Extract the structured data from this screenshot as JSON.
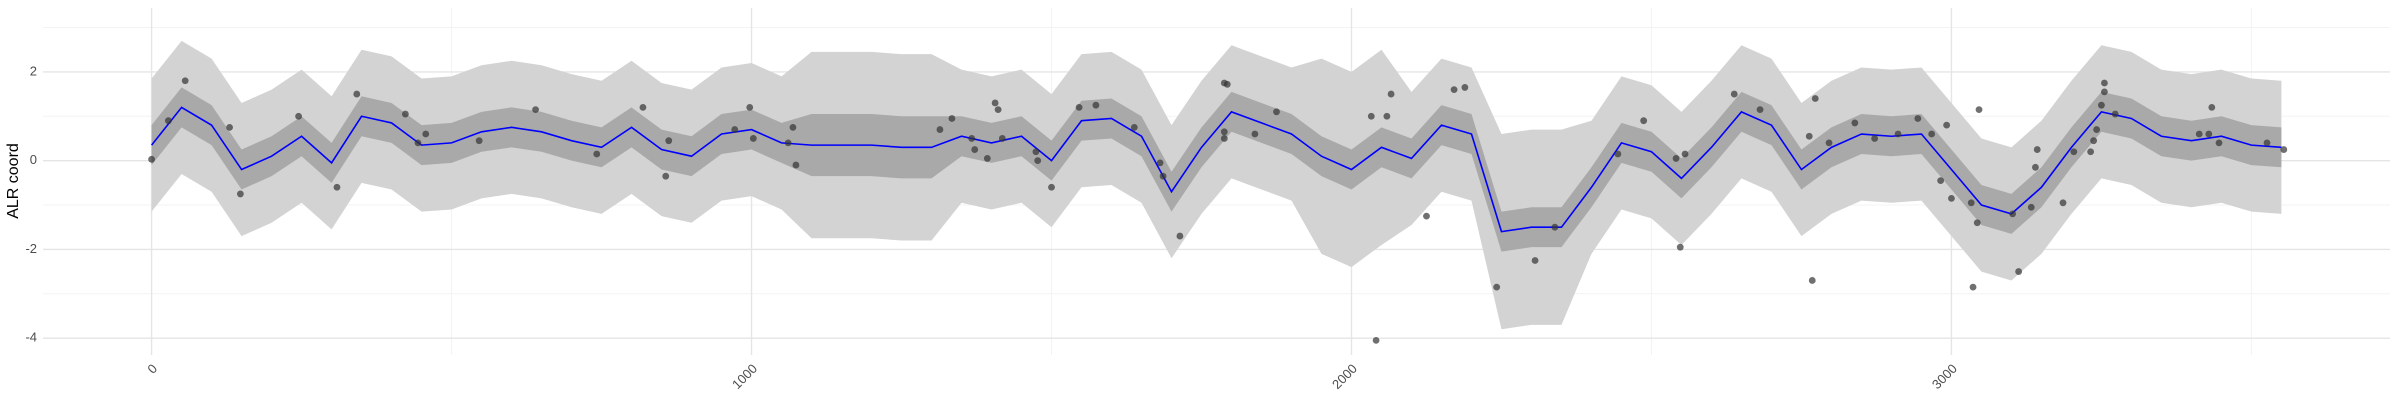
{
  "chart_data": {
    "type": "line",
    "y_label": "ALR coord",
    "xlim": [
      -181,
      3731
    ],
    "ylim": [
      -4.38,
      3.44
    ],
    "xticks": [
      0,
      1000,
      2000,
      3000
    ],
    "yticks": [
      -4,
      -2,
      0,
      2
    ],
    "x_minor_ticks": [
      500,
      1500,
      2500,
      3500
    ],
    "y_minor_ticks": [
      -3,
      -1,
      1,
      3
    ],
    "grid": true,
    "x": [
      0,
      50,
      100,
      150,
      200,
      250,
      300,
      350,
      400,
      450,
      500,
      550,
      600,
      650,
      700,
      750,
      800,
      850,
      900,
      950,
      1000,
      1050,
      1100,
      1150,
      1200,
      1250,
      1300,
      1350,
      1400,
      1450,
      1500,
      1550,
      1600,
      1650,
      1700,
      1750,
      1800,
      1850,
      1900,
      1950,
      2000,
      2050,
      2100,
      2150,
      2200,
      2250,
      2300,
      2350,
      2400,
      2450,
      2500,
      2550,
      2600,
      2650,
      2700,
      2750,
      2800,
      2850,
      2900,
      2950,
      3000,
      3050,
      3100,
      3150,
      3200,
      3250,
      3300,
      3350,
      3400,
      3450,
      3500,
      3550
    ],
    "bands": [
      {
        "color": "#d3d3d3",
        "lower": [
          -1.15,
          -0.3,
          -0.7,
          -1.7,
          -1.4,
          -0.95,
          -1.55,
          -0.5,
          -0.65,
          -1.15,
          -1.1,
          -0.85,
          -0.75,
          -0.85,
          -1.05,
          -1.2,
          -0.75,
          -1.25,
          -1.4,
          -0.9,
          -0.8,
          -1.1,
          -1.75,
          -1.75,
          -1.75,
          -1.8,
          -1.8,
          -0.95,
          -1.1,
          -0.95,
          -1.5,
          -0.6,
          -0.55,
          -0.95,
          -2.2,
          -1.2,
          -0.4,
          -0.65,
          -0.9,
          -2.1,
          -2.4,
          -1.9,
          -1.45,
          -0.7,
          -0.9,
          -3.8,
          -3.7,
          -3.7,
          -2.1,
          -1.1,
          -1.3,
          -1.9,
          -1.2,
          -0.4,
          -0.7,
          -1.7,
          -1.2,
          -0.9,
          -0.95,
          -0.9,
          -1.7,
          -2.5,
          -2.7,
          -2.1,
          -1.2,
          -0.4,
          -0.55,
          -0.95,
          -1.05,
          -0.95,
          -1.15,
          -1.2
        ],
        "upper": [
          1.85,
          2.7,
          2.3,
          1.3,
          1.6,
          2.05,
          1.45,
          2.5,
          2.35,
          1.85,
          1.9,
          2.15,
          2.25,
          2.15,
          1.95,
          1.8,
          2.25,
          1.75,
          1.6,
          2.1,
          2.2,
          1.9,
          2.45,
          2.45,
          2.45,
          2.4,
          2.4,
          2.05,
          1.9,
          2.05,
          1.5,
          2.4,
          2.45,
          2.05,
          0.8,
          1.8,
          2.6,
          2.35,
          2.1,
          2.3,
          2.0,
          2.5,
          1.55,
          2.3,
          2.1,
          0.6,
          0.7,
          0.7,
          0.9,
          1.9,
          1.7,
          1.1,
          1.8,
          2.6,
          2.3,
          1.3,
          1.8,
          2.1,
          2.05,
          2.1,
          1.3,
          0.5,
          0.3,
          0.9,
          1.8,
          2.6,
          2.45,
          2.05,
          1.95,
          2.05,
          1.85,
          1.8
        ]
      },
      {
        "color": "#a9a9a9",
        "lower": [
          -0.1,
          0.75,
          0.35,
          -0.65,
          -0.35,
          0.1,
          -0.5,
          0.55,
          0.4,
          -0.1,
          -0.05,
          0.2,
          0.3,
          0.2,
          0.0,
          -0.15,
          0.3,
          -0.2,
          -0.35,
          0.15,
          0.25,
          -0.05,
          -0.35,
          -0.35,
          -0.35,
          -0.4,
          -0.4,
          0.1,
          -0.05,
          0.1,
          -0.45,
          0.45,
          0.5,
          0.1,
          -1.15,
          -0.15,
          0.65,
          0.4,
          0.15,
          -0.35,
          -0.65,
          -0.15,
          -0.4,
          0.35,
          0.15,
          -2.05,
          -1.95,
          -1.95,
          -1.05,
          -0.05,
          -0.25,
          -0.85,
          -0.15,
          0.65,
          0.35,
          -0.65,
          -0.15,
          0.15,
          0.1,
          0.15,
          -0.65,
          -1.45,
          -1.65,
          -1.05,
          -0.15,
          0.65,
          0.5,
          0.1,
          0.0,
          0.1,
          -0.1,
          -0.15
        ],
        "upper": [
          0.8,
          1.65,
          1.25,
          0.25,
          0.55,
          1.0,
          0.4,
          1.45,
          1.3,
          0.8,
          0.85,
          1.1,
          1.2,
          1.1,
          0.9,
          0.75,
          1.2,
          0.7,
          0.55,
          1.05,
          1.15,
          0.85,
          1.05,
          1.05,
          1.05,
          1.0,
          1.0,
          1.0,
          0.85,
          1.0,
          0.45,
          1.35,
          1.4,
          1.0,
          -0.25,
          0.75,
          1.55,
          1.3,
          1.05,
          0.55,
          0.25,
          0.75,
          0.5,
          1.25,
          1.05,
          -1.15,
          -1.05,
          -1.05,
          -0.15,
          0.85,
          0.65,
          0.05,
          0.75,
          1.55,
          1.25,
          0.25,
          0.75,
          1.05,
          1.0,
          1.05,
          0.25,
          -0.55,
          -0.75,
          -0.15,
          0.75,
          1.55,
          1.4,
          1.0,
          0.9,
          1.0,
          0.8,
          0.75
        ]
      }
    ],
    "line": {
      "color": "#0000ff",
      "values": [
        0.35,
        1.2,
        0.8,
        -0.2,
        0.1,
        0.55,
        -0.05,
        1.0,
        0.85,
        0.35,
        0.4,
        0.65,
        0.75,
        0.65,
        0.45,
        0.3,
        0.75,
        0.25,
        0.1,
        0.6,
        0.7,
        0.4,
        0.35,
        0.35,
        0.35,
        0.3,
        0.3,
        0.55,
        0.4,
        0.55,
        0.0,
        0.9,
        0.95,
        0.55,
        -0.7,
        0.3,
        1.1,
        0.85,
        0.6,
        0.1,
        -0.2,
        0.3,
        0.05,
        0.8,
        0.6,
        -1.6,
        -1.5,
        -1.5,
        -0.6,
        0.4,
        0.2,
        -0.4,
        0.3,
        1.1,
        0.8,
        -0.2,
        0.3,
        0.6,
        0.55,
        0.6,
        -0.2,
        -1.0,
        -1.2,
        -0.6,
        0.3,
        1.1,
        0.95,
        0.55,
        0.45,
        0.55,
        0.35,
        0.3
      ]
    },
    "points": {
      "color": "#333333",
      "x": [
        0,
        28,
        56,
        130,
        148,
        245,
        309,
        342,
        423,
        444,
        457,
        546,
        640,
        742,
        819,
        857,
        862,
        972,
        997,
        1003,
        1069,
        1074,
        1061,
        1314,
        1334,
        1367,
        1372,
        1393,
        1406,
        1411,
        1418,
        1474,
        1477,
        1500,
        1546,
        1574,
        1638,
        1681,
        1686,
        1714,
        1788,
        1793,
        1788,
        1788,
        1839,
        1875,
        2033,
        2041,
        2059,
        2066,
        2125,
        2171,
        2189,
        2242,
        2306,
        2339,
        2444,
        2487,
        2541,
        2548,
        2556,
        2638,
        2681,
        2763,
        2768,
        2773,
        2796,
        2839,
        2872,
        2911,
        2944,
        2967,
        2982,
        2992,
        3000,
        3033,
        3036,
        3043,
        3046,
        3102,
        3112,
        3133,
        3140,
        3143,
        3186,
        3204,
        3232,
        3237,
        3242,
        3250,
        3255,
        3255,
        3273,
        3413,
        3429,
        3434,
        3446,
        3526,
        3554
      ],
      "y": [
        0.03,
        0.9,
        1.8,
        0.75,
        -0.75,
        1.0,
        -0.6,
        1.5,
        1.05,
        0.4,
        0.6,
        0.45,
        1.15,
        0.15,
        1.2,
        -0.35,
        0.45,
        0.7,
        1.2,
        0.5,
        0.75,
        -0.1,
        0.4,
        0.7,
        0.95,
        0.5,
        0.25,
        0.05,
        1.3,
        1.15,
        0.5,
        0.2,
        0.0,
        -0.6,
        1.2,
        1.25,
        0.75,
        -0.05,
        -0.35,
        -1.7,
        1.75,
        1.72,
        0.65,
        0.5,
        0.6,
        1.1,
        1.0,
        -4.05,
        1.0,
        1.5,
        -1.25,
        1.6,
        1.65,
        -2.85,
        -2.25,
        -1.5,
        0.15,
        0.9,
        0.05,
        -1.95,
        0.15,
        1.5,
        1.15,
        0.55,
        -2.7,
        1.4,
        0.4,
        0.85,
        0.5,
        0.6,
        0.95,
        0.6,
        -0.45,
        0.8,
        -0.85,
        -0.95,
        -2.85,
        -1.4,
        1.15,
        -1.2,
        -2.5,
        -1.05,
        -0.15,
        0.25,
        -0.95,
        0.2,
        0.2,
        0.45,
        0.7,
        1.25,
        1.75,
        1.55,
        1.05,
        0.6,
        0.6,
        1.2,
        0.4,
        0.4,
        0.25
      ]
    }
  }
}
